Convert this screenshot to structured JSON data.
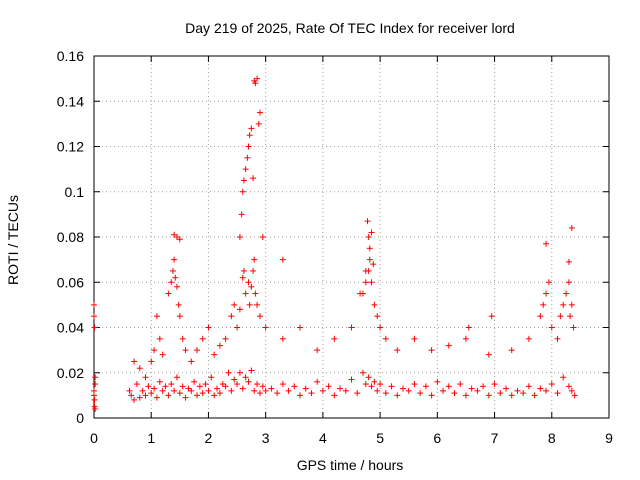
{
  "chart_data": {
    "type": "scatter",
    "title": "Day 219 of 2025, Rate Of TEC Index for receiver lord",
    "xlabel": "GPS time / hours",
    "ylabel": "ROTI / TECUs",
    "xlim": [
      0,
      9
    ],
    "ylim": [
      0,
      0.16
    ],
    "x_ticks": [
      0,
      1,
      2,
      3,
      4,
      5,
      6,
      7,
      8,
      9
    ],
    "x_tick_labels": [
      "0",
      "1",
      "2",
      "3",
      "4",
      "5",
      "6",
      "7",
      "8",
      "9"
    ],
    "y_ticks": [
      0,
      0.02,
      0.04,
      0.06,
      0.08,
      0.1,
      0.12,
      0.14,
      0.16
    ],
    "y_tick_labels": [
      "0",
      "0.02",
      "0.04",
      "0.06",
      "0.08",
      "0.1",
      "0.12",
      "0.14",
      "0.16"
    ],
    "grid": true,
    "marker": "+",
    "color": "#ff0000",
    "series": [
      {
        "name": "ROTI",
        "x": [
          0.0,
          0.0,
          0.01,
          0.02,
          0.0,
          0.01,
          0.02,
          0.01,
          0.0,
          0.02,
          0.62,
          0.65,
          0.7,
          0.75,
          0.8,
          0.85,
          0.9,
          0.95,
          1.0,
          1.05,
          1.1,
          1.15,
          1.2,
          1.25,
          1.3,
          1.35,
          1.4,
          1.45,
          1.5,
          1.55,
          1.6,
          1.65,
          1.7,
          1.75,
          1.8,
          1.85,
          1.9,
          1.95,
          2.0,
          2.05,
          2.1,
          2.15,
          2.2,
          2.25,
          2.3,
          2.35,
          2.4,
          2.45,
          2.5,
          2.55,
          2.6,
          2.65,
          2.7,
          2.75,
          2.8,
          2.85,
          2.9,
          2.95,
          3.0,
          3.1,
          3.2,
          3.3,
          3.4,
          3.5,
          3.6,
          3.7,
          3.8,
          3.9,
          4.0,
          4.1,
          4.2,
          4.3,
          4.4,
          4.5,
          4.6,
          4.7,
          4.75,
          4.8,
          4.85,
          4.9,
          4.95,
          5.0,
          5.1,
          5.2,
          5.3,
          5.4,
          5.5,
          5.6,
          5.7,
          5.8,
          5.9,
          6.0,
          6.1,
          6.2,
          6.3,
          6.4,
          6.5,
          6.6,
          6.7,
          6.8,
          6.9,
          7.0,
          7.1,
          7.2,
          7.3,
          7.4,
          7.5,
          7.6,
          7.7,
          7.8,
          7.9,
          8.0,
          8.1,
          8.2,
          8.3,
          8.35,
          8.4,
          0.7,
          0.8,
          0.9,
          1.0,
          1.05,
          1.1,
          1.15,
          1.2,
          1.3,
          1.35,
          1.38,
          1.4,
          1.42,
          1.45,
          1.48,
          1.5,
          1.55,
          1.6,
          1.7,
          1.8,
          1.9,
          2.0,
          2.1,
          2.2,
          2.3,
          2.4,
          2.45,
          2.5,
          2.55,
          2.6,
          2.62,
          2.65,
          2.7,
          2.72,
          2.75,
          2.78,
          2.8,
          2.82,
          2.85,
          2.9,
          3.0,
          3.3,
          3.6,
          3.9,
          4.2,
          4.5,
          4.7,
          4.75,
          4.8,
          4.82,
          4.85,
          4.9,
          4.95,
          5.0,
          5.1,
          5.3,
          5.6,
          5.9,
          6.2,
          6.5,
          6.55,
          6.9,
          6.95,
          7.3,
          7.6,
          7.8,
          7.85,
          7.9,
          7.95,
          8.0,
          8.1,
          8.15,
          8.2,
          8.25,
          8.3,
          8.32,
          8.35,
          8.38,
          2.55,
          2.58,
          2.6,
          2.62,
          2.65,
          2.68,
          2.7,
          2.72,
          2.75,
          2.78,
          2.8,
          2.82,
          2.85,
          2.88,
          2.9,
          2.95,
          3.3,
          4.65,
          4.75,
          4.78,
          4.8,
          4.82,
          4.85,
          4.88,
          7.9,
          8.3,
          8.35,
          1.4,
          1.45,
          1.5
        ],
        "y": [
          0.045,
          0.05,
          0.04,
          0.015,
          0.01,
          0.008,
          0.018,
          0.005,
          0.012,
          0.004,
          0.012,
          0.01,
          0.008,
          0.015,
          0.009,
          0.012,
          0.01,
          0.014,
          0.011,
          0.013,
          0.009,
          0.016,
          0.012,
          0.014,
          0.01,
          0.015,
          0.012,
          0.018,
          0.011,
          0.014,
          0.009,
          0.013,
          0.012,
          0.016,
          0.01,
          0.014,
          0.011,
          0.015,
          0.012,
          0.018,
          0.01,
          0.013,
          0.011,
          0.015,
          0.014,
          0.02,
          0.012,
          0.017,
          0.015,
          0.02,
          0.013,
          0.018,
          0.016,
          0.021,
          0.012,
          0.015,
          0.011,
          0.014,
          0.012,
          0.013,
          0.011,
          0.015,
          0.012,
          0.014,
          0.01,
          0.013,
          0.011,
          0.016,
          0.012,
          0.014,
          0.01,
          0.013,
          0.012,
          0.017,
          0.011,
          0.02,
          0.015,
          0.018,
          0.014,
          0.016,
          0.012,
          0.015,
          0.011,
          0.014,
          0.01,
          0.013,
          0.012,
          0.015,
          0.011,
          0.014,
          0.01,
          0.016,
          0.012,
          0.014,
          0.011,
          0.015,
          0.01,
          0.013,
          0.012,
          0.014,
          0.01,
          0.015,
          0.011,
          0.013,
          0.01,
          0.012,
          0.011,
          0.014,
          0.01,
          0.013,
          0.012,
          0.015,
          0.011,
          0.018,
          0.014,
          0.012,
          0.01,
          0.025,
          0.022,
          0.018,
          0.025,
          0.03,
          0.045,
          0.035,
          0.028,
          0.055,
          0.06,
          0.065,
          0.07,
          0.062,
          0.058,
          0.05,
          0.045,
          0.035,
          0.03,
          0.025,
          0.03,
          0.035,
          0.04,
          0.028,
          0.032,
          0.035,
          0.045,
          0.05,
          0.04,
          0.048,
          0.062,
          0.065,
          0.055,
          0.06,
          0.05,
          0.058,
          0.065,
          0.07,
          0.055,
          0.05,
          0.045,
          0.04,
          0.035,
          0.04,
          0.03,
          0.035,
          0.04,
          0.055,
          0.06,
          0.065,
          0.07,
          0.06,
          0.05,
          0.045,
          0.04,
          0.035,
          0.03,
          0.035,
          0.03,
          0.032,
          0.035,
          0.04,
          0.028,
          0.045,
          0.03,
          0.035,
          0.045,
          0.05,
          0.055,
          0.06,
          0.04,
          0.035,
          0.045,
          0.05,
          0.055,
          0.06,
          0.045,
          0.05,
          0.04,
          0.08,
          0.09,
          0.1,
          0.105,
          0.11,
          0.115,
          0.12,
          0.125,
          0.128,
          0.106,
          0.149,
          0.148,
          0.15,
          0.13,
          0.135,
          0.08,
          0.07,
          0.055,
          0.065,
          0.087,
          0.08,
          0.075,
          0.082,
          0.068,
          0.077,
          0.069,
          0.084,
          0.081,
          0.08,
          0.079
        ]
      }
    ]
  }
}
